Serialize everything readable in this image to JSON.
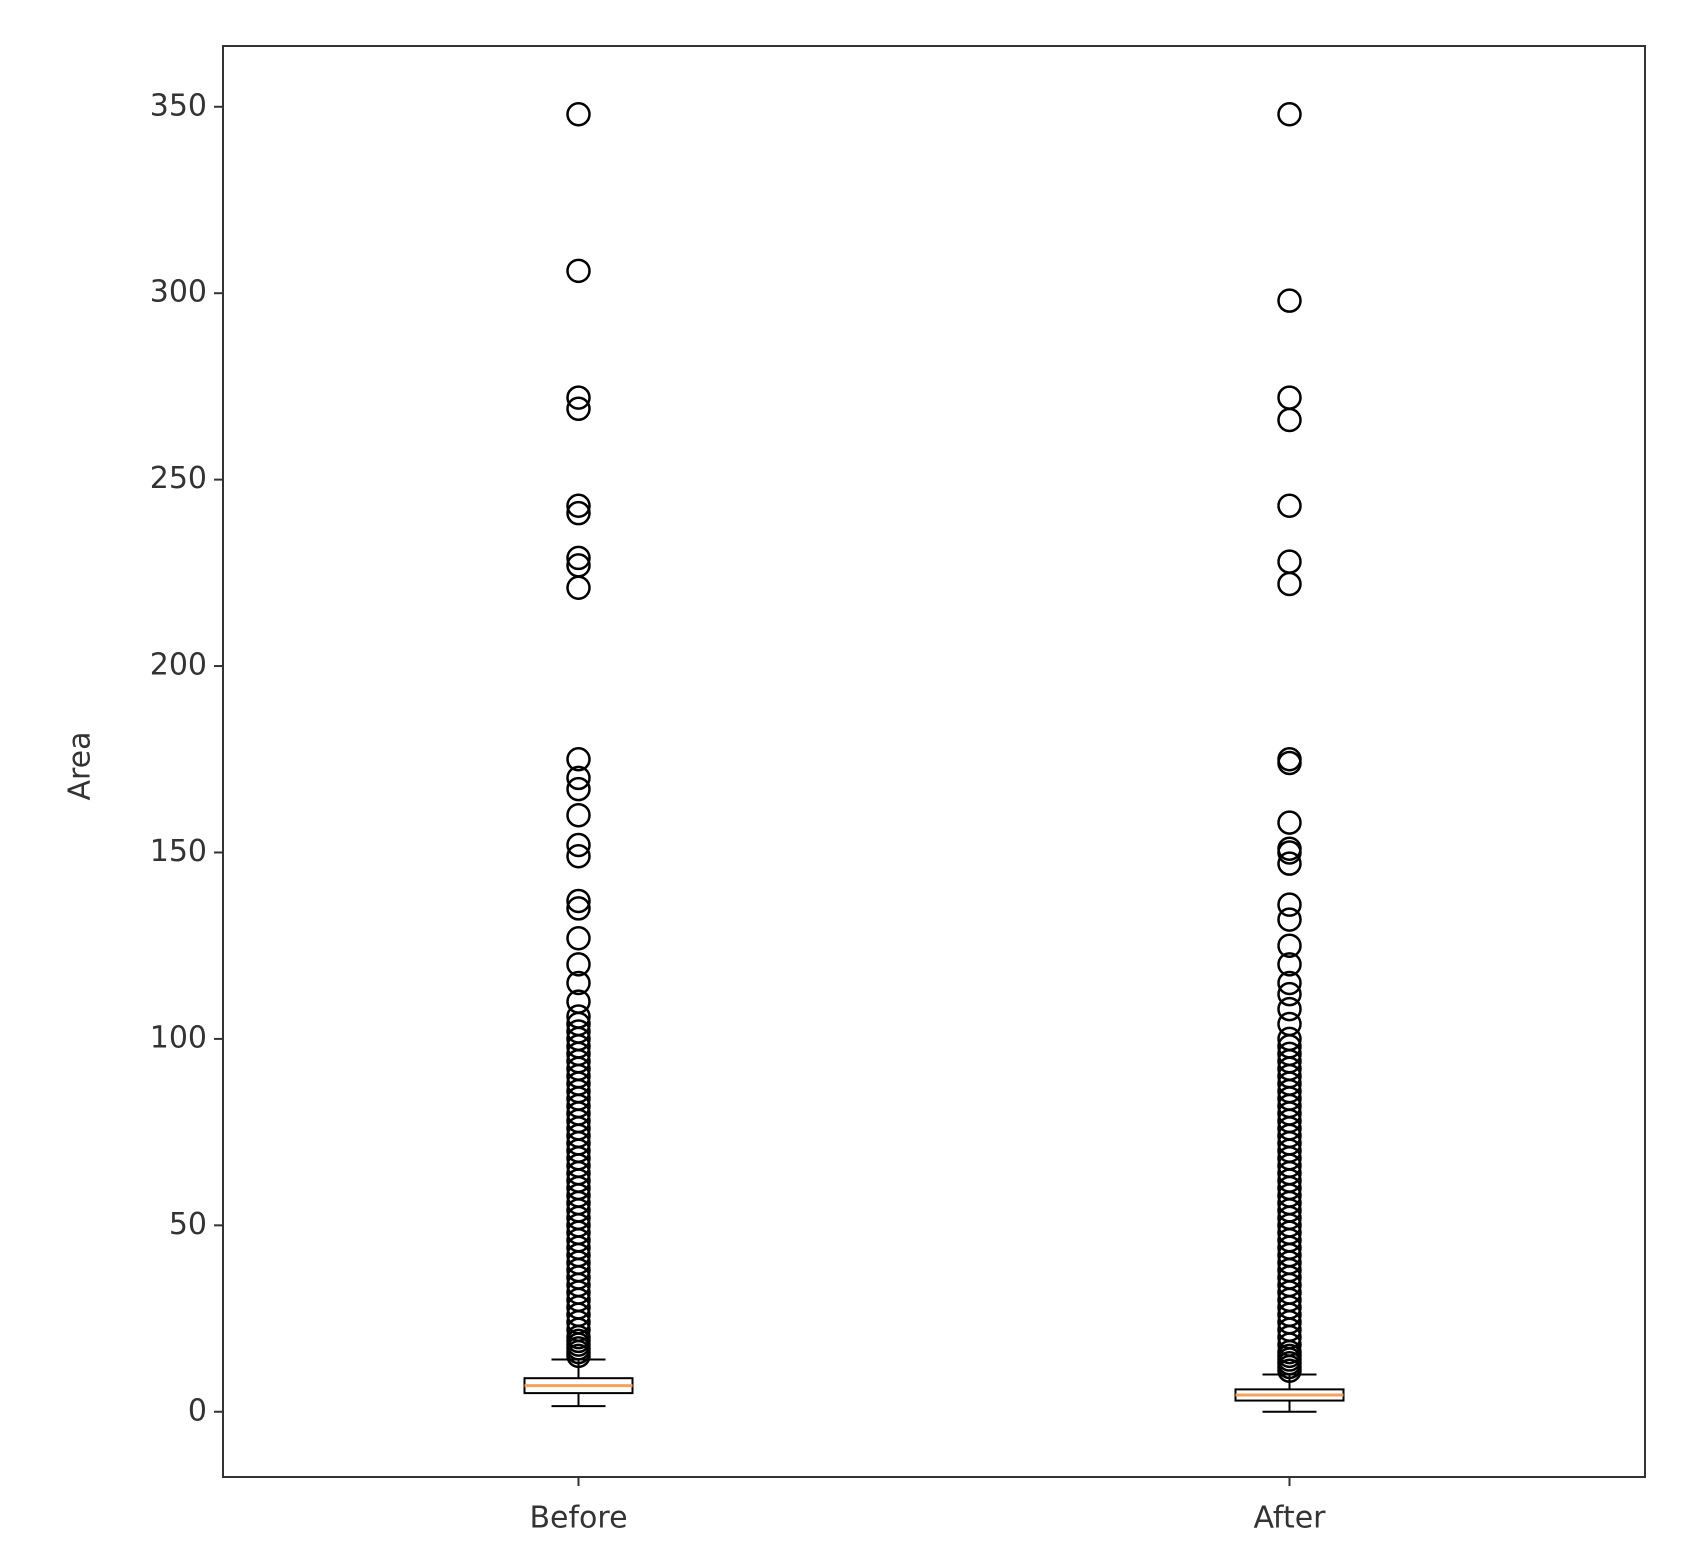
{
  "chart_data": {
    "type": "boxplot",
    "ylabel": "Area",
    "categories": [
      "Before",
      "After"
    ],
    "boxes": [
      {
        "whislo": 1.5,
        "q1": 5,
        "med": 7,
        "q3": 9,
        "whishi": 14,
        "fliers": [
          15,
          16,
          17,
          18,
          19,
          20,
          22,
          24,
          26,
          28,
          30,
          32,
          34,
          36,
          38,
          40,
          42,
          44,
          46,
          48,
          50,
          52,
          54,
          56,
          58,
          60,
          62,
          64,
          66,
          68,
          70,
          72,
          74,
          76,
          78,
          80,
          82,
          84,
          86,
          88,
          90,
          92,
          94,
          96,
          98,
          100,
          102,
          104,
          106,
          110,
          115,
          120,
          127,
          135,
          137,
          149,
          152,
          160,
          167,
          170,
          175,
          221,
          227,
          229,
          241,
          243,
          269,
          272,
          306,
          348
        ]
      },
      {
        "whislo": 0,
        "q1": 3,
        "med": 4.5,
        "q3": 6,
        "whishi": 10,
        "fliers": [
          11,
          12,
          13,
          14,
          15,
          16,
          18,
          20,
          22,
          24,
          26,
          28,
          30,
          32,
          34,
          36,
          38,
          40,
          42,
          44,
          46,
          48,
          50,
          52,
          54,
          56,
          58,
          60,
          62,
          64,
          66,
          68,
          70,
          72,
          74,
          76,
          78,
          80,
          82,
          84,
          86,
          88,
          90,
          92,
          94,
          96,
          98,
          100,
          104,
          108,
          112,
          115,
          120,
          125,
          132,
          136,
          147,
          150,
          151,
          158,
          174,
          175,
          222,
          228,
          243,
          266,
          272,
          298,
          348
        ]
      }
    ],
    "box_color": "#000000",
    "median_color": "#f5a25d",
    "ylim": [
      -17.5,
      366.3
    ],
    "yticks": [
      0,
      50,
      100,
      150,
      200,
      250,
      300,
      350
    ]
  }
}
